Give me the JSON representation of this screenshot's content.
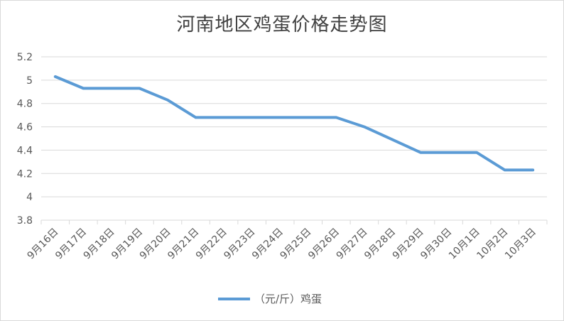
{
  "chart_data": {
    "type": "line",
    "title": "河南地区鸡蛋价格走势图",
    "xlabel": "",
    "ylabel": "",
    "categories": [
      "9月16日",
      "9月17日",
      "9月18日",
      "9月19日",
      "9月20日",
      "9月21日",
      "9月22日",
      "9月23日",
      "9月24日",
      "9月25日",
      "9月26日",
      "9月27日",
      "9月28日",
      "9月29日",
      "9月30日",
      "10月1日",
      "10月2日",
      "10月3日"
    ],
    "series": [
      {
        "name": "（元/斤）鸡蛋",
        "color": "#5b9bd5",
        "values": [
          5.03,
          4.93,
          4.93,
          4.93,
          4.83,
          4.68,
          4.68,
          4.68,
          4.68,
          4.68,
          4.68,
          4.6,
          4.49,
          4.38,
          4.38,
          4.38,
          4.23,
          4.23
        ]
      }
    ],
    "ylim": [
      3.8,
      5.2
    ],
    "yticks": [
      "5.2",
      "5",
      "4.8",
      "4.6",
      "4.4",
      "4.2",
      "4",
      "3.8"
    ],
    "grid": true,
    "legend": "bottom"
  }
}
